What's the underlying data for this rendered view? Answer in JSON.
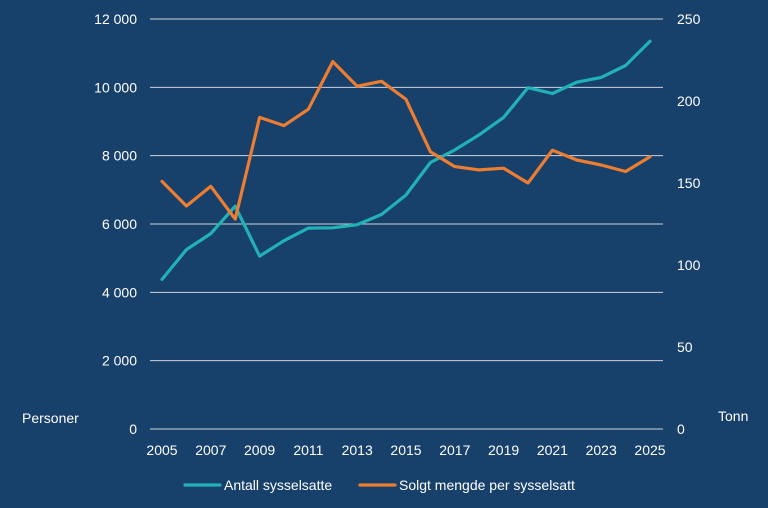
{
  "chart_data": {
    "type": "line",
    "title": "",
    "xlabel": "",
    "ylabel_left": "Personer",
    "ylabel_right": "Tonn",
    "x": [
      2005,
      2006,
      2007,
      2008,
      2009,
      2010,
      2011,
      2012,
      2013,
      2014,
      2015,
      2016,
      2017,
      2018,
      2019,
      2020,
      2021,
      2022,
      2023,
      2024,
      2025
    ],
    "x_tick_labels": [
      "2005",
      "2007",
      "2009",
      "2011",
      "2013",
      "2015",
      "2017",
      "2019",
      "2021",
      "2023",
      "2025"
    ],
    "y_left_ticks": [
      "0",
      "2 000",
      "4 000",
      "6 000",
      "8 000",
      "10 000",
      "12 000"
    ],
    "y_right_ticks": [
      "0",
      "50",
      "100",
      "150",
      "200",
      "250"
    ],
    "ylim_left": [
      0,
      12000
    ],
    "ylim_right": [
      0,
      250
    ],
    "grid": "horizontal",
    "legend_position": "bottom",
    "background_color": "#17406b",
    "series": [
      {
        "name": "Antall sysselsatte",
        "axis": "left",
        "color": "#22b1b5",
        "values": [
          4380,
          5250,
          5720,
          6520,
          5060,
          5510,
          5880,
          5890,
          5980,
          6280,
          6850,
          7800,
          8170,
          8610,
          9120,
          9990,
          9820,
          10150,
          10290,
          10640,
          11350
        ]
      },
      {
        "name": "Solgt mengde per sysselsatt",
        "axis": "right",
        "color": "#ed7d31",
        "values": [
          151,
          136,
          148,
          128,
          190,
          185,
          195,
          224,
          209,
          212,
          201,
          169,
          160,
          158,
          159,
          150,
          170,
          164,
          161,
          157,
          166
        ]
      }
    ]
  }
}
